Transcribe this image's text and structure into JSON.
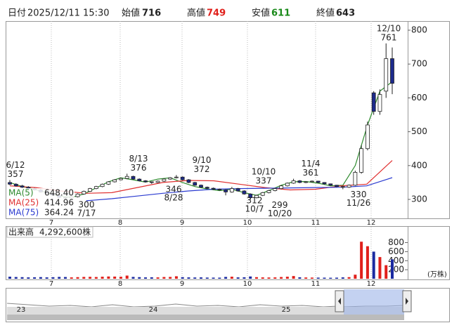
{
  "header": {
    "date_label": "日付",
    "date": "2025/12/11 15:30",
    "open_label": "始値",
    "open": 716,
    "high_label": "高値",
    "high": 749,
    "low_label": "安値",
    "low": 611,
    "close_label": "終値",
    "close": 643
  },
  "chart_data": {
    "type": "candlestick",
    "months": [
      "7",
      "8",
      "9",
      "10",
      "11",
      "12"
    ],
    "candles": [
      [
        350,
        357,
        342,
        345
      ],
      [
        345,
        348,
        338,
        340
      ],
      [
        340,
        343,
        334,
        336
      ],
      [
        336,
        339,
        330,
        332
      ],
      [
        332,
        334,
        326,
        328
      ],
      [
        328,
        331,
        320,
        322
      ],
      [
        322,
        325,
        316,
        318
      ],
      [
        318,
        320,
        310,
        312
      ],
      [
        312,
        314,
        304,
        306
      ],
      [
        306,
        308,
        300,
        304
      ],
      [
        304,
        310,
        302,
        308
      ],
      [
        308,
        318,
        306,
        316
      ],
      [
        316,
        326,
        314,
        324
      ],
      [
        324,
        334,
        322,
        332
      ],
      [
        332,
        340,
        330,
        338
      ],
      [
        338,
        347,
        336,
        345
      ],
      [
        345,
        354,
        343,
        352
      ],
      [
        352,
        360,
        350,
        358
      ],
      [
        358,
        364,
        356,
        362
      ],
      [
        362,
        376,
        360,
        368
      ],
      [
        368,
        370,
        358,
        360
      ],
      [
        360,
        362,
        353,
        355
      ],
      [
        355,
        357,
        350,
        352
      ],
      [
        352,
        353,
        346,
        350
      ],
      [
        350,
        356,
        348,
        354
      ],
      [
        354,
        362,
        352,
        360
      ],
      [
        360,
        366,
        358,
        364
      ],
      [
        364,
        372,
        362,
        366
      ],
      [
        366,
        368,
        356,
        358
      ],
      [
        358,
        360,
        348,
        350
      ],
      [
        350,
        352,
        340,
        342
      ],
      [
        342,
        344,
        334,
        336
      ],
      [
        336,
        338,
        331,
        333
      ],
      [
        333,
        335,
        328,
        330
      ],
      [
        330,
        332,
        326,
        328
      ],
      [
        328,
        330,
        312,
        322
      ],
      [
        322,
        337,
        320,
        332
      ],
      [
        332,
        334,
        323,
        325
      ],
      [
        325,
        327,
        314,
        316
      ],
      [
        316,
        318,
        299,
        305
      ],
      [
        305,
        314,
        303,
        312
      ],
      [
        312,
        322,
        310,
        320
      ],
      [
        320,
        328,
        318,
        326
      ],
      [
        326,
        334,
        324,
        332
      ],
      [
        332,
        342,
        330,
        340
      ],
      [
        340,
        350,
        338,
        348
      ],
      [
        348,
        361,
        346,
        355
      ],
      [
        355,
        357,
        348,
        350
      ],
      [
        350,
        354,
        348,
        352
      ],
      [
        352,
        356,
        350,
        354
      ],
      [
        354,
        355,
        348,
        350
      ],
      [
        350,
        351,
        344,
        346
      ],
      [
        346,
        347,
        340,
        342
      ],
      [
        342,
        343,
        336,
        338
      ],
      [
        338,
        340,
        330,
        336
      ],
      [
        336,
        344,
        334,
        342
      ],
      [
        342,
        385,
        340,
        380
      ],
      [
        380,
        460,
        376,
        450
      ],
      [
        450,
        530,
        445,
        520
      ],
      [
        615,
        620,
        550,
        560
      ],
      [
        560,
        625,
        550,
        610
      ],
      [
        620,
        761,
        600,
        716
      ],
      [
        716,
        749,
        611,
        643
      ]
    ],
    "up_fill": "#ffffff",
    "down_fill": "#1c2a8c",
    "candle_stroke": "#222222",
    "ylim": [
      244,
      827
    ],
    "yticks": [
      300,
      400,
      500,
      600,
      700,
      800
    ],
    "ma": [
      {
        "name": "MA(5)",
        "color": "#2e8b2e",
        "legend_value": 648.4,
        "legend_label": "648.40",
        "values": [
          350,
          338,
          330,
          320,
          310,
          306,
          316,
          334,
          352,
          364,
          358,
          351,
          360,
          364,
          350,
          338,
          331,
          326,
          330,
          320,
          312,
          326,
          342,
          352,
          353,
          348,
          340,
          342,
          400,
          520,
          620,
          648
        ]
      },
      {
        "name": "MA(25)",
        "color": "#e03030",
        "legend_value": 414.96,
        "legend_label": "414.96",
        "values": [
          340,
          335,
          325,
          318,
          320,
          335,
          350,
          356,
          355,
          345,
          335,
          328,
          330,
          340,
          345,
          414.96
        ]
      },
      {
        "name": "MA(75)",
        "color": "#2a3ad0",
        "legend_value": 364.24,
        "legend_label": "364.24",
        "values": [
          null,
          null,
          null,
          296,
          302,
          310,
          318,
          325,
          330,
          332,
          333,
          334,
          335,
          336,
          340,
          364.24
        ]
      }
    ],
    "highs": [
      {
        "date": "6/12",
        "value": 357
      },
      {
        "date": "8/13",
        "value": 376
      },
      {
        "date": "9/10",
        "value": 372
      },
      {
        "date": "10/10",
        "value": 337
      },
      {
        "date": "11/4",
        "value": 361
      },
      {
        "date": "12/10",
        "value": 761
      }
    ],
    "lows": [
      {
        "date": "7/17",
        "value": 300
      },
      {
        "date": "8/28",
        "value": 346
      },
      {
        "date": "10/7",
        "value": 312
      },
      {
        "date": "10/20",
        "value": 299
      },
      {
        "date": "11/26",
        "value": 330
      }
    ],
    "volume": {
      "title": "出来高",
      "current": 4292600,
      "current_label": "4,292,600株",
      "unit": "(万株)",
      "up_color": "#e0201b",
      "down_color": "#1a2aa0",
      "ylim": [
        0,
        1150
      ],
      "yticks": [
        200,
        400,
        600,
        800
      ],
      "values": [
        45,
        38,
        35,
        30,
        32,
        36,
        30,
        34,
        40,
        38,
        30,
        35,
        40,
        42,
        38,
        45,
        50,
        48,
        44,
        70,
        40,
        35,
        30,
        32,
        30,
        38,
        40,
        55,
        35,
        30,
        28,
        30,
        26,
        25,
        24,
        40,
        45,
        30,
        32,
        50,
        35,
        30,
        28,
        30,
        38,
        45,
        60,
        32,
        28,
        26,
        25,
        24,
        22,
        24,
        30,
        35,
        90,
        820,
        720,
        600,
        480,
        300,
        429.26
      ]
    }
  },
  "navigator": {
    "labels": [
      "23",
      "24",
      "25"
    ]
  }
}
